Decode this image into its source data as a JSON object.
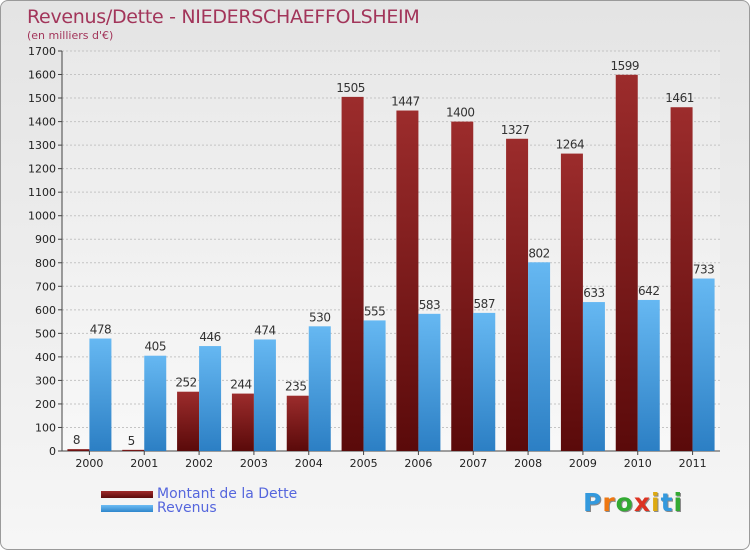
{
  "chart_data": {
    "type": "bar",
    "title": "Revenus/Dette - NIEDERSCHAEFFOLSHEIM",
    "subtitle": "(en milliers d'€)",
    "categories": [
      "2000",
      "2001",
      "2002",
      "2003",
      "2004",
      "2005",
      "2006",
      "2007",
      "2008",
      "2009",
      "2010",
      "2011"
    ],
    "series": [
      {
        "name": "Montant de la Dette",
        "color": "#7a1616",
        "values": [
          8,
          5,
          252,
          244,
          235,
          1505,
          1447,
          1400,
          1327,
          1264,
          1599,
          1461
        ]
      },
      {
        "name": "Revenus",
        "color": "#4ea6e6",
        "values": [
          478,
          405,
          446,
          474,
          530,
          555,
          583,
          587,
          802,
          633,
          642,
          733
        ]
      }
    ],
    "ylim": [
      0,
      1700
    ],
    "yticks": [
      "0",
      "100",
      "200",
      "300",
      "400",
      "500",
      "600",
      "700",
      "800",
      "900",
      "1000",
      "1100",
      "1200",
      "1300",
      "1400",
      "1500",
      "1600",
      "1700"
    ],
    "grid": true,
    "legend_position": "bottom-left"
  },
  "logo": {
    "text": "Proxiti",
    "letters": [
      "P",
      "r",
      "o",
      "x",
      "i",
      "t",
      "i"
    ],
    "colors": [
      "#3399dd",
      "#ee7711",
      "#33aa33",
      "#dd3322",
      "#ddaa11",
      "#3399dd",
      "#33aa33"
    ]
  }
}
